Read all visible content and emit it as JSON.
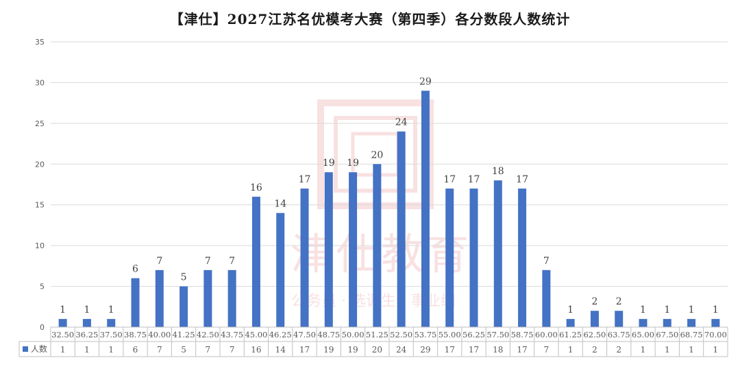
{
  "chart_data": {
    "type": "bar",
    "title": "【津仕】2027江苏名优模考大赛（第四季）各分数段人数统计",
    "xlabel": "",
    "ylabel": "",
    "ylim": [
      0,
      35
    ],
    "yticks": [
      0,
      5,
      10,
      15,
      20,
      25,
      30,
      35
    ],
    "grid": true,
    "legend": "table-left",
    "categories": [
      "32.50",
      "36.25",
      "37.50",
      "38.75",
      "40.00",
      "41.25",
      "42.50",
      "43.75",
      "45.00",
      "46.25",
      "47.50",
      "48.75",
      "50.00",
      "51.25",
      "52.50",
      "53.75",
      "55.00",
      "56.25",
      "57.50",
      "58.75",
      "60.00",
      "61.25",
      "62.50",
      "63.75",
      "65.00",
      "67.50",
      "68.75",
      "70.00"
    ],
    "series": [
      {
        "name": "人数",
        "values": [
          1,
          1,
          1,
          6,
          7,
          5,
          7,
          7,
          16,
          14,
          17,
          19,
          19,
          20,
          24,
          29,
          17,
          17,
          18,
          17,
          7,
          1,
          2,
          2,
          1,
          1,
          1,
          1
        ]
      }
    ],
    "colors": {
      "bar": "#4472C4",
      "grid": "#d9d9d9",
      "axis_text": "#595959",
      "label_text": "#404040"
    },
    "watermark": {
      "text": "津仕教育",
      "subtext": "公务员 · 选调生 · 事业编",
      "color": "#e07a7a"
    }
  }
}
